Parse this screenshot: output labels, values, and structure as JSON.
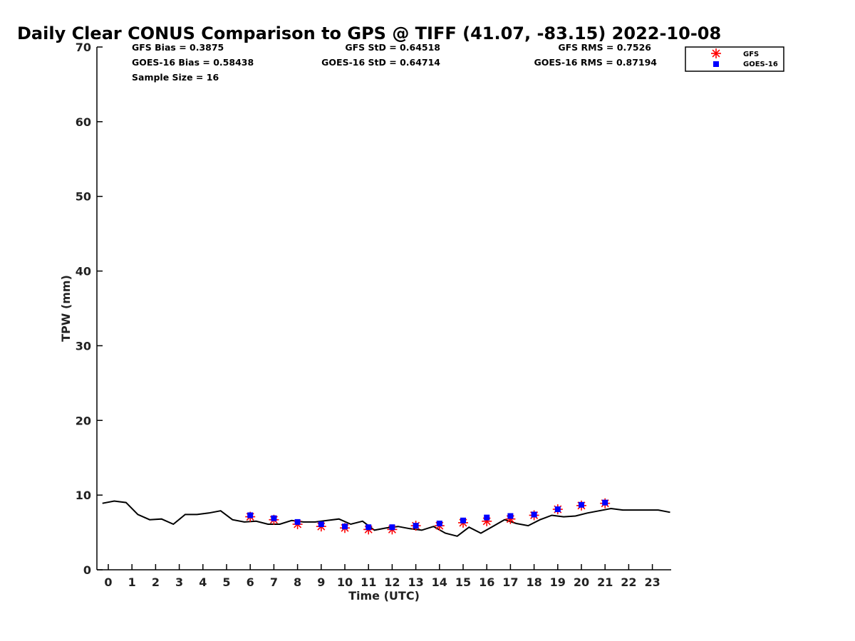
{
  "chart_data": {
    "type": "scatter",
    "title": "Daily Clear CONUS Comparison to GPS @ TIFF (41.07, -83.15) 2022-10-08",
    "xlabel": "Time (UTC)",
    "ylabel": "TPW (mm)",
    "xlim": [
      -0.5,
      23.75
    ],
    "ylim": [
      0,
      70
    ],
    "x_ticks": [
      0,
      1,
      2,
      3,
      4,
      5,
      6,
      7,
      8,
      9,
      10,
      11,
      12,
      13,
      14,
      15,
      16,
      17,
      18,
      19,
      20,
      21,
      22,
      23
    ],
    "y_ticks": [
      0,
      10,
      20,
      30,
      40,
      50,
      60,
      70
    ],
    "grid": false,
    "legend_position": "top-right",
    "stats": {
      "gfs_bias": "GFS Bias = 0.3875",
      "gfs_std": "GFS StD = 0.64518",
      "gfs_rms": "GFS RMS = 0.7526",
      "goes_bias": "GOES-16 Bias = 0.58438",
      "goes_std": "GOES-16 StD = 0.64714",
      "goes_rms": "GOES-16 RMS = 0.87194",
      "sample_size": "Sample Size = 16"
    },
    "colors": {
      "gps": "#000000",
      "gfs": "#ff0000",
      "goes": "#0000ff"
    },
    "gps_line": {
      "x": [
        -0.25,
        0.25,
        0.75,
        1.25,
        1.75,
        2.25,
        2.75,
        3.25,
        3.75,
        4.25,
        4.75,
        5.25,
        5.75,
        6.25,
        6.75,
        7.25,
        7.75,
        8.25,
        8.75,
        9.25,
        9.75,
        10.25,
        10.75,
        11.25,
        11.75,
        12.25,
        12.75,
        13.25,
        13.75,
        14.25,
        14.75,
        15.25,
        15.75,
        16.25,
        16.75,
        17.25,
        17.75,
        18.25,
        18.75,
        19.25,
        19.75,
        20.25,
        20.75,
        21.25,
        21.75,
        22.25,
        22.75,
        23.25,
        23.75
      ],
      "y": [
        8.9,
        9.2,
        9.0,
        7.4,
        6.7,
        6.8,
        6.1,
        7.4,
        7.4,
        7.6,
        7.9,
        6.7,
        6.4,
        6.5,
        6.1,
        6.1,
        6.6,
        6.4,
        6.4,
        6.6,
        6.8,
        6.1,
        6.5,
        5.3,
        5.6,
        5.8,
        5.5,
        5.3,
        5.8,
        4.9,
        4.5,
        5.7,
        4.9,
        5.8,
        6.7,
        6.2,
        5.9,
        6.7,
        7.3,
        7.1,
        7.2,
        7.6,
        7.9,
        8.2,
        8.0,
        8.0,
        8.0,
        8.0,
        7.7
      ]
    },
    "series": [
      {
        "name": "GFS",
        "marker": "asterisk",
        "x": [
          6,
          7,
          8,
          9,
          10,
          11,
          12,
          13,
          14,
          15,
          16,
          17,
          18,
          19,
          20,
          21
        ],
        "y": [
          7.1,
          6.7,
          6.1,
          5.8,
          5.6,
          5.4,
          5.4,
          5.9,
          5.9,
          6.3,
          6.5,
          6.8,
          7.3,
          8.1,
          8.6,
          8.9
        ]
      },
      {
        "name": "GOES-16",
        "marker": "square",
        "x": [
          6,
          7,
          8,
          9,
          10,
          11,
          12,
          13,
          14,
          15,
          16,
          17,
          18,
          19,
          20,
          21
        ],
        "y": [
          7.3,
          6.9,
          6.4,
          6.1,
          5.8,
          5.7,
          5.7,
          5.9,
          6.2,
          6.6,
          7.0,
          7.2,
          7.4,
          8.1,
          8.7,
          9.0
        ]
      }
    ]
  }
}
